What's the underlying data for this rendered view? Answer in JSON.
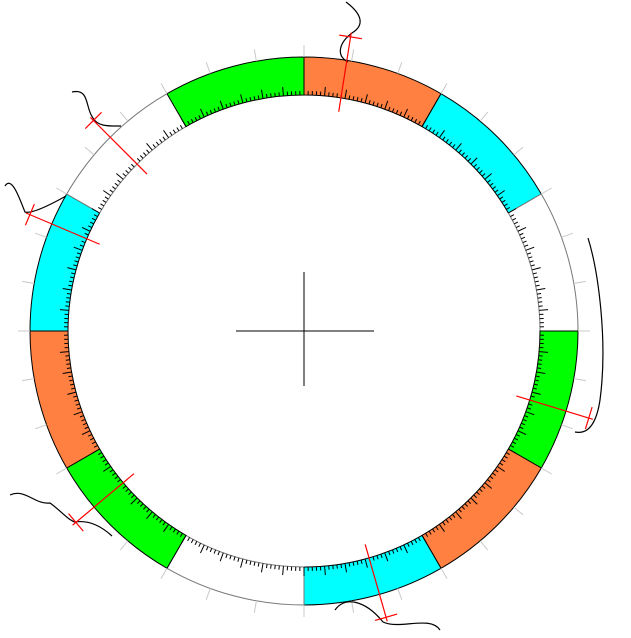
{
  "diagram": {
    "segment_colors": [
      "#ff8040",
      "#00ffff",
      "#ffffff",
      "#00ff00"
    ],
    "segment_count": 12,
    "segment_span_deg": 30,
    "outer_tick_step_deg": 10,
    "inner_tick_step_deg": 1,
    "inner_major_tick_every": 5,
    "ring_stroke": "#000000",
    "outer_tick_color": "#c8c8c8",
    "marker_color": "#ff0000",
    "curve_color": "#000000",
    "crosshair_color": "#000000",
    "marker_angles_deg": [
      9,
      107,
      164,
      230,
      293,
      315
    ]
  }
}
